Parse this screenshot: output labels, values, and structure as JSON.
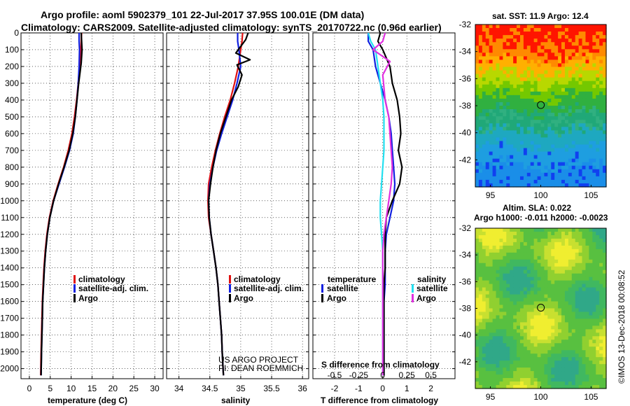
{
  "header": {
    "line1": "Argo profile: aoml 5902379_101 22-Jul-2017 37.95S 100.01E (DM data)",
    "line2": "Climatology: CARS2009. Satellite-adjusted climatology: synTS_20170722.nc (0.96d earlier)"
  },
  "colors": {
    "climatology": "#e01010",
    "satellite_clim": "#1020e0",
    "argo": "#000000",
    "sat_salinity": "#22e0f0",
    "argo_salinity": "#e030e0"
  },
  "chart_data": [
    {
      "type": "line",
      "name": "temperature-profile",
      "xlabel": "temperature (deg C)",
      "xlim": [
        -2,
        32
      ],
      "xticks": [
        0,
        5,
        10,
        15,
        20,
        25,
        30
      ],
      "ylim": [
        2060,
        0
      ],
      "yticks": [
        0,
        100,
        200,
        300,
        400,
        500,
        600,
        700,
        800,
        900,
        1000,
        1100,
        1200,
        1300,
        1400,
        1500,
        1600,
        1700,
        1800,
        1900,
        2000
      ],
      "legend": [
        "climatology",
        "satellite-adj. clim.",
        "Argo"
      ],
      "series": [
        {
          "name": "climatology",
          "x": [
            12.5,
            12.4,
            12.3,
            12.0,
            11.7,
            11.3,
            10.8,
            10.2,
            9.3,
            8.2,
            6.9,
            5.7,
            4.8,
            4.2,
            3.8,
            3.5,
            3.3,
            3.1,
            3.0,
            2.9,
            2.8,
            2.7
          ],
          "y": [
            0,
            50,
            100,
            200,
            300,
            400,
            500,
            600,
            700,
            800,
            900,
            1000,
            1100,
            1200,
            1300,
            1400,
            1500,
            1600,
            1700,
            1800,
            1900,
            2040
          ]
        },
        {
          "name": "satellite-adj. clim.",
          "x": [
            11.9,
            11.9,
            12.0,
            11.9,
            11.7,
            11.4,
            11.0,
            10.5,
            9.6,
            8.4,
            7.1,
            5.8,
            4.9,
            4.3,
            3.9,
            3.6,
            3.4,
            3.2,
            3.1,
            3.0,
            2.9,
            2.8
          ],
          "y": [
            0,
            50,
            100,
            200,
            300,
            400,
            500,
            600,
            700,
            800,
            900,
            1000,
            1100,
            1200,
            1300,
            1400,
            1500,
            1600,
            1700,
            1800,
            1900,
            2040
          ]
        },
        {
          "name": "Argo",
          "x": [
            12.4,
            12.5,
            12.6,
            12.4,
            11.8,
            11.4,
            11.0,
            10.4,
            9.5,
            8.3,
            7.0,
            5.8,
            4.9,
            4.3,
            3.9,
            3.6,
            3.4,
            3.2,
            3.1,
            3.0,
            2.9,
            2.8
          ],
          "y": [
            0,
            50,
            100,
            180,
            300,
            400,
            500,
            600,
            700,
            800,
            900,
            1000,
            1100,
            1200,
            1300,
            1400,
            1500,
            1600,
            1700,
            1800,
            1900,
            2040
          ]
        }
      ]
    },
    {
      "type": "line",
      "name": "salinity-profile",
      "xlabel": "salinity",
      "xlim": [
        33.8,
        36.1
      ],
      "xticks": [
        34,
        34.5,
        35,
        35.5,
        36
      ],
      "xticklabels": [
        "34",
        "34.5",
        "35",
        "35.5",
        "36"
      ],
      "ylim": [
        2060,
        0
      ],
      "legend": [
        "climatology",
        "satellite-adj. clim.",
        "Argo"
      ],
      "credit": [
        "US ARGO PROJECT",
        "PI: DEAN ROEMMICH"
      ],
      "series": [
        {
          "name": "climatology",
          "x": [
            35.03,
            35.02,
            35.0,
            34.96,
            34.9,
            34.83,
            34.74,
            34.66,
            34.59,
            34.53,
            34.48,
            34.47,
            34.48,
            34.52,
            34.56,
            34.6,
            34.63,
            34.65,
            34.67,
            34.69,
            34.7,
            34.72
          ],
          "y": [
            0,
            50,
            100,
            200,
            300,
            400,
            500,
            600,
            700,
            800,
            900,
            1000,
            1100,
            1200,
            1300,
            1400,
            1500,
            1600,
            1700,
            1800,
            1900,
            2040
          ]
        },
        {
          "name": "satellite-adj. clim.",
          "x": [
            34.95,
            34.95,
            34.97,
            35.0,
            34.94,
            34.87,
            34.78,
            34.69,
            34.61,
            34.55,
            34.5,
            34.48,
            34.49,
            34.52,
            34.56,
            34.6,
            34.63,
            34.65,
            34.67,
            34.69,
            34.7,
            34.72
          ],
          "y": [
            0,
            50,
            100,
            200,
            300,
            400,
            500,
            600,
            700,
            800,
            900,
            1000,
            1100,
            1200,
            1300,
            1400,
            1500,
            1600,
            1700,
            1800,
            1900,
            2040
          ]
        },
        {
          "name": "Argo",
          "x": [
            35.12,
            35.08,
            34.92,
            35.15,
            34.94,
            35.02,
            34.96,
            34.85,
            34.76,
            34.67,
            34.6,
            34.55,
            34.51,
            34.48,
            34.49,
            34.52,
            34.56,
            34.6,
            34.63,
            34.65,
            34.67,
            34.69,
            34.7,
            34.72
          ],
          "y": [
            0,
            40,
            120,
            160,
            190,
            250,
            320,
            400,
            500,
            600,
            700,
            800,
            900,
            1000,
            1100,
            1200,
            1300,
            1400,
            1500,
            1600,
            1700,
            1800,
            1900,
            2040
          ]
        }
      ]
    },
    {
      "type": "line",
      "name": "difference-profile",
      "xlabel": "T difference from climatology",
      "xlim": [
        -2.9,
        3.0
      ],
      "xticks": [
        -2,
        -1,
        0,
        1,
        2
      ],
      "x2label": "S difference from climatology",
      "x2ticks": [
        "-0.5",
        "-0.25",
        "0",
        "0.25",
        "0.5"
      ],
      "legend_groups": [
        "temperature",
        "salinity"
      ],
      "legend": [
        "satellite",
        "Argo",
        "satellite",
        "Argo"
      ],
      "series": [
        {
          "name": "temperature satellite",
          "x": [
            -0.6,
            -0.6,
            -0.4,
            -0.3,
            -0.1,
            0.1,
            0.25,
            0.35,
            0.4,
            0.45,
            0.5,
            0.45,
            0.3,
            0.15,
            0.1,
            0.1,
            0.1,
            0.05,
            0.05,
            0.05,
            0.05,
            0.05
          ],
          "y": [
            0,
            50,
            100,
            200,
            300,
            400,
            500,
            600,
            700,
            800,
            900,
            1000,
            1100,
            1200,
            1300,
            1400,
            1500,
            1600,
            1700,
            1800,
            1900,
            2040
          ]
        },
        {
          "name": "temperature Argo",
          "x": [
            -0.1,
            -0.2,
            0.0,
            0.3,
            0.4,
            0.6,
            0.7,
            0.75,
            0.65,
            0.8,
            0.7,
            0.4,
            0.15,
            0.1,
            0.1,
            0.1,
            0.05,
            0.05,
            0.05,
            0.05,
            0.05,
            0.05
          ],
          "y": [
            0,
            50,
            100,
            200,
            300,
            400,
            500,
            600,
            700,
            800,
            900,
            1000,
            1100,
            1200,
            1300,
            1400,
            1500,
            1600,
            1700,
            1800,
            1900,
            2040
          ]
        },
        {
          "name": "salinity satellite",
          "x": [
            -0.6,
            -0.5,
            -0.3,
            -0.2,
            -0.1,
            0.0,
            0.05,
            0.05,
            0.05,
            0.0,
            -0.05,
            -0.1,
            -0.1,
            -0.05,
            0.0,
            0.0,
            0.0,
            0.0,
            0.0,
            0.0,
            0.0,
            0.0
          ],
          "y": [
            0,
            50,
            100,
            200,
            300,
            400,
            500,
            600,
            700,
            800,
            900,
            1000,
            1100,
            1200,
            1300,
            1400,
            1500,
            1600,
            1700,
            1800,
            1900,
            2040
          ]
        },
        {
          "name": "salinity Argo",
          "x": [
            0.1,
            0.0,
            -0.4,
            0.3,
            0.0,
            0.1,
            0.25,
            0.3,
            0.35,
            0.4,
            0.35,
            0.25,
            0.15,
            0.05,
            0.0,
            0.0,
            0.0,
            0.0,
            0.0,
            0.0,
            0.0,
            0.0
          ],
          "y": [
            0,
            50,
            100,
            170,
            250,
            400,
            500,
            600,
            700,
            800,
            900,
            1000,
            1100,
            1200,
            1300,
            1400,
            1500,
            1600,
            1700,
            1800,
            1900,
            2040
          ]
        }
      ]
    },
    {
      "type": "heatmap",
      "name": "sst-map",
      "title": "sat. SST: 11.9 Argo: 12.4",
      "xlim": [
        93.5,
        106.5
      ],
      "ylim": [
        -44,
        -32
      ],
      "xticks": [
        95,
        100,
        105
      ],
      "yticks": [
        -32,
        -34,
        -36,
        -38,
        -40,
        -42
      ],
      "marker": {
        "lon": 100.01,
        "lat": -37.95
      }
    },
    {
      "type": "heatmap",
      "name": "sla-map",
      "title": "Altim. SLA: 0.022",
      "subtitle": "Argo h1000: -0.011 h2000: -0.0023",
      "xlim": [
        93.5,
        106.5
      ],
      "ylim": [
        -44,
        -32
      ],
      "xticks": [
        95,
        100,
        105
      ],
      "yticks": [
        -32,
        -34,
        -36,
        -38,
        -40,
        -42
      ],
      "marker": {
        "lon": 100.01,
        "lat": -37.95
      }
    }
  ],
  "legend_temp": {
    "clim": "climatology",
    "sat": "satellite-adj. clim.",
    "argo": "Argo"
  },
  "legend_sal": {
    "clim": "climatology",
    "sat": "satellite-adj. clim.",
    "argo": "Argo"
  },
  "legend_diff": {
    "temp_header": "temperature",
    "sal_header": "salinity",
    "t_sat": "satellite",
    "t_argo": "Argo",
    "s_sat": "satellite",
    "s_argo": "Argo"
  },
  "credit": {
    "line1": "US ARGO PROJECT",
    "line2": "PI: DEAN ROEMMICH"
  },
  "map_sst": {
    "title": "sat. SST: 11.9 Argo: 12.4"
  },
  "map_sla": {
    "title": "Altim. SLA: 0.022",
    "subtitle": "Argo h1000: -0.011 h2000: -0.0023"
  },
  "watermark": "©IMOS 13-Dec-2018 00:08:52"
}
